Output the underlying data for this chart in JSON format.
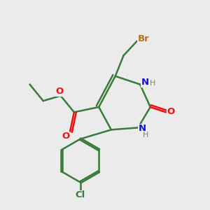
{
  "bg_color": "#ebebeb",
  "bond_color": "#3a7a3a",
  "bond_width": 1.8,
  "N_color": "#1010ee",
  "O_color": "#ee1010",
  "Br_color": "#b87020",
  "Cl_color": "#3a7a3a",
  "H_color": "#808080",
  "xlim": [
    0,
    10
  ],
  "ylim": [
    0,
    10
  ]
}
